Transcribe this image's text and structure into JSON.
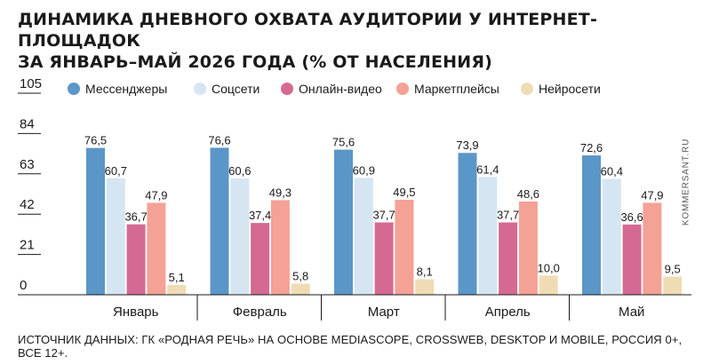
{
  "title_line1": "ДИНАМИКА ДНЕВНОГО ОХВАТА АУДИТОРИИ У ИНТЕРНЕТ-ПЛОЩАДОК",
  "title_line2": "ЗА ЯНВАРЬ–МАЙ 2026 ГОДА (% ОТ НАСЕЛЕНИЯ)",
  "source": "ИСТОЧНИК ДАННЫХ: ГК «РОДНАЯ РЕЧЬ» НА ОСНОВЕ MEDIASCOPE, CROSSWEB, DESKTOP И MOBILE, РОССИЯ 0+, ВСЕ 12+.",
  "watermark": "KOMMERSANT.RU",
  "chart_data": {
    "type": "bar",
    "title": "ДИНАМИКА ДНЕВНОГО ОХВАТА АУДИТОРИИ У ИНТЕРНЕТ-ПЛОЩАДОК ЗА ЯНВАРЬ–МАЙ 2026 ГОДА (% ОТ НАСЕЛЕНИЯ)",
    "categories": [
      "Январь",
      "Февраль",
      "Март",
      "Апрель",
      "Май"
    ],
    "series": [
      {
        "name": "Мессенджеры",
        "color": "#5b96c8",
        "values": [
          76.5,
          76.6,
          75.6,
          73.9,
          72.6
        ],
        "labels": [
          "76,5",
          "76,6",
          "75,6",
          "73,9",
          "72,6"
        ]
      },
      {
        "name": "Соцсети",
        "color": "#d6e5f2",
        "values": [
          60.7,
          60.6,
          60.9,
          61.4,
          60.4
        ],
        "labels": [
          "60,7",
          "60,6",
          "60,9",
          "61,4",
          "60,4"
        ]
      },
      {
        "name": "Онлайн-видео",
        "color": "#d46a92",
        "values": [
          36.7,
          37.4,
          37.7,
          37.7,
          36.6
        ],
        "labels": [
          "36,7",
          "37,4",
          "37,7",
          "37,7",
          "36,6"
        ]
      },
      {
        "name": "Маркетплейсы",
        "color": "#f4a196",
        "values": [
          47.9,
          49.3,
          49.5,
          48.6,
          47.9
        ],
        "labels": [
          "47,9",
          "49,3",
          "49,5",
          "48,6",
          "47,9"
        ]
      },
      {
        "name": "Нейросети",
        "color": "#f0dcb4",
        "values": [
          5.1,
          5.8,
          8.1,
          10.0,
          9.5
        ],
        "labels": [
          "5,1",
          "5,8",
          "8,1",
          "10,0",
          "9,5"
        ]
      }
    ],
    "yticks": [
      "0",
      "21",
      "42",
      "63",
      "84",
      "105"
    ],
    "ylim": [
      0,
      105
    ],
    "grid": false,
    "legend": "top"
  }
}
